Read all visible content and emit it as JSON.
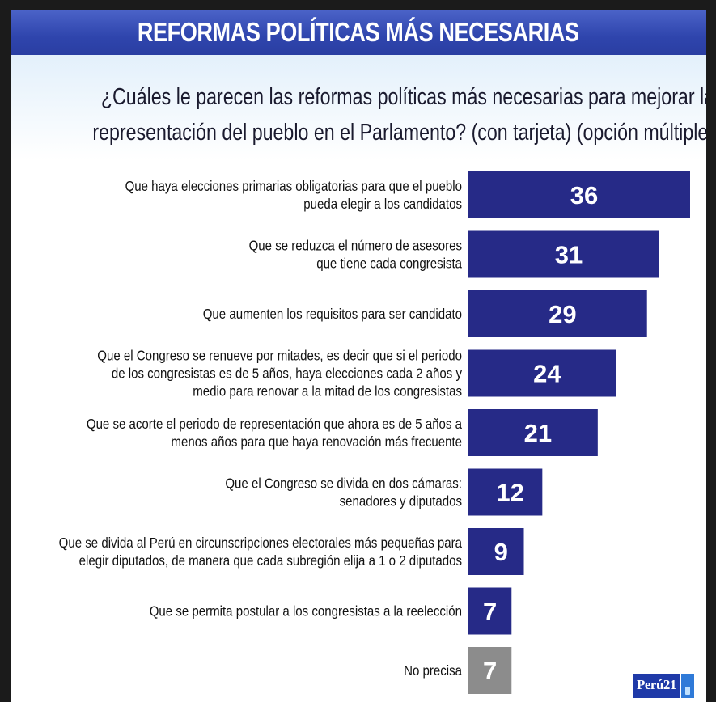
{
  "header": {
    "title": "REFORMAS POLÍTICAS MÁS NECESARIAS",
    "subtitle_lines": [
      "¿Cuáles le parecen las reformas políticas más necesarias para mejorar la calidad de la",
      "representación del pueblo en el Parlamento? (con tarjeta) (opción múltiple) (%)"
    ]
  },
  "colors": {
    "bar": "#262a87",
    "bar_other": "#8c8c8c",
    "title_bg": "#2f45ad"
  },
  "chart_data": {
    "type": "bar",
    "orientation": "horizontal",
    "title": "REFORMAS POLÍTICAS MÁS NECESARIAS",
    "xlim": [
      0,
      36
    ],
    "grid": false,
    "legend": "none",
    "categories": [
      [
        "Que haya elecciones primarias obligatorias para que el pueblo",
        "pueda elegir a los candidatos"
      ],
      [
        "Que se reduzca el número de asesores",
        "que tiene cada congresista"
      ],
      [
        "Que aumenten los requisitos para ser candidato"
      ],
      [
        "Que el Congreso se renueve por mitades, es decir que si el periodo",
        "de los congresistas es de 5 años, haya elecciones cada 2 años y",
        "medio para renovar a la mitad de los congresistas"
      ],
      [
        "Que se acorte el periodo de representación que ahora es de 5 años a",
        "menos años para que haya renovación más frecuente"
      ],
      [
        "Que el Congreso se divida en dos cámaras:",
        "senadores y diputados"
      ],
      [
        "Que se divida al Perú en circunscripciones electorales más pequeñas para",
        "elegir diputados, de manera que cada subregión elija a 1 o 2 diputados"
      ],
      [
        "Que se permita postular a los congresistas a la reelección"
      ],
      [
        "No precisa"
      ]
    ],
    "values": [
      36,
      31,
      29,
      24,
      21,
      12,
      9,
      7,
      7
    ],
    "data_labels": [
      "36",
      "31",
      "29",
      "24",
      "21",
      "12",
      "9",
      "7",
      "7"
    ],
    "bar_colors": [
      "#262a87",
      "#262a87",
      "#262a87",
      "#262a87",
      "#262a87",
      "#262a87",
      "#262a87",
      "#262a87",
      "#8c8c8c"
    ]
  },
  "logo": {
    "text": "Perú21"
  }
}
